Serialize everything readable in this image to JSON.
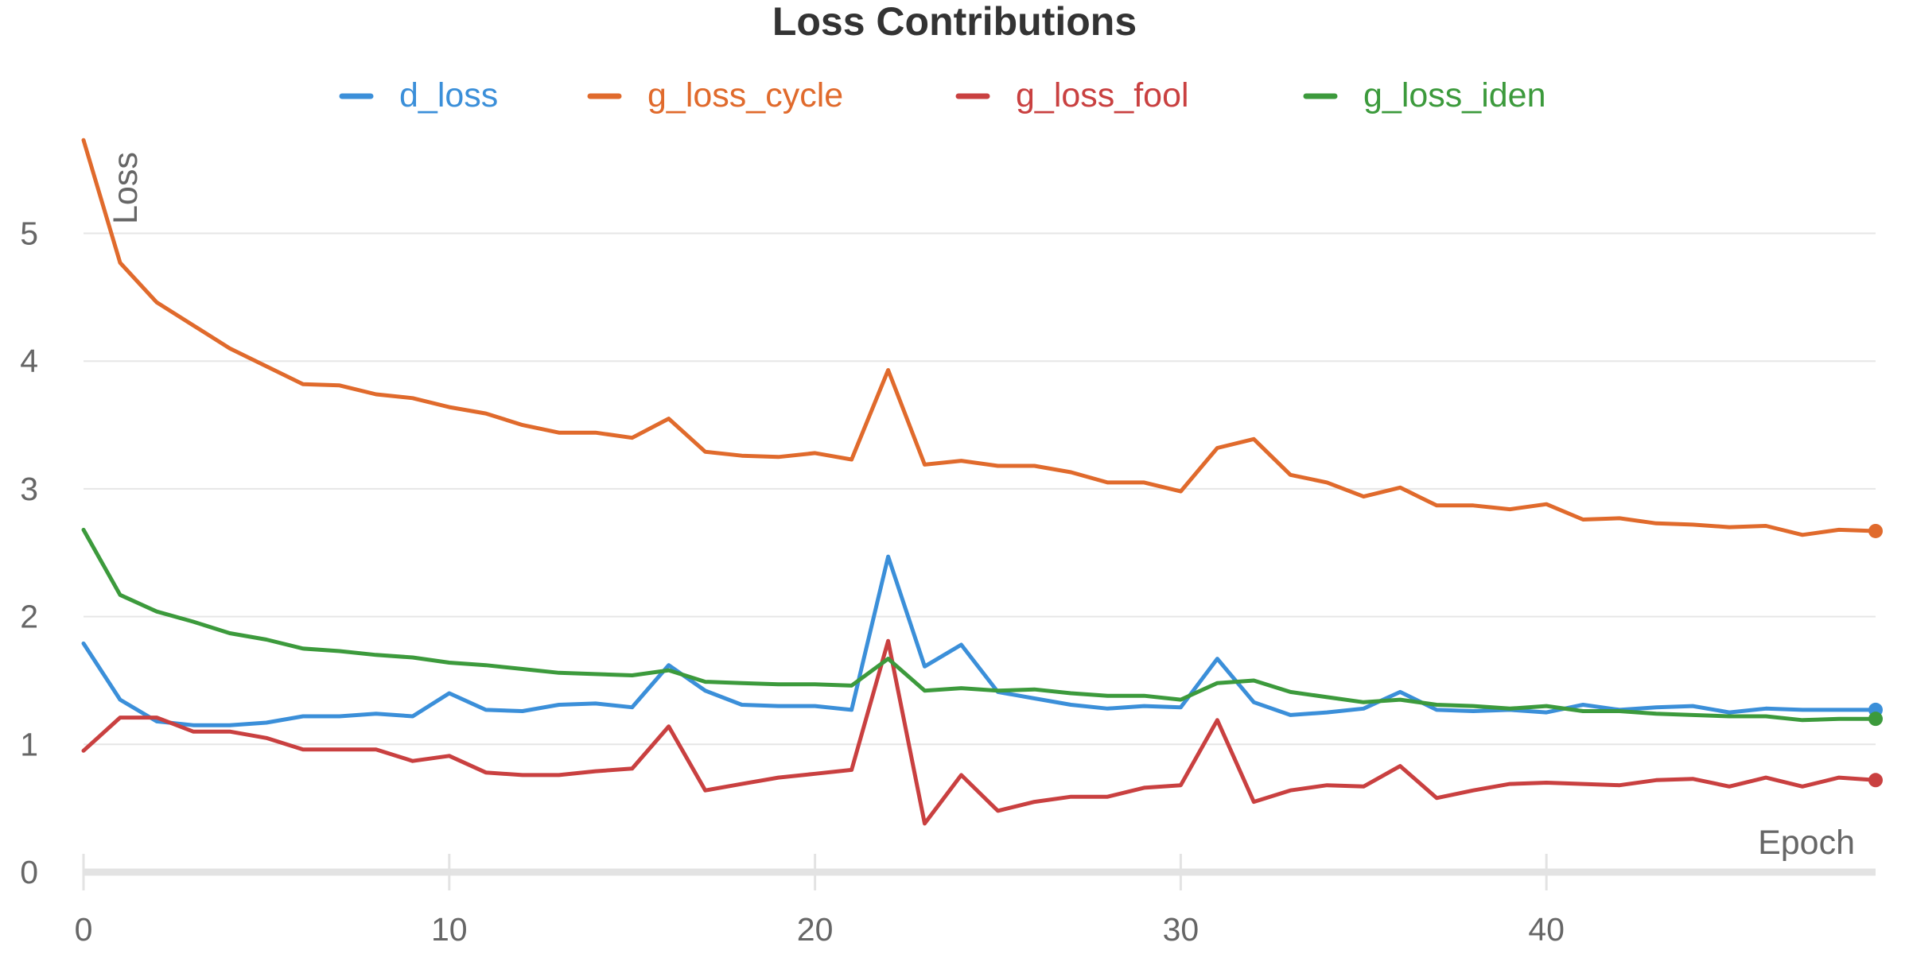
{
  "chart_data": {
    "type": "line",
    "title": "Loss Contributions",
    "xlabel": "Epoch",
    "ylabel": "Loss",
    "xlim": [
      0,
      49
    ],
    "ylim": [
      0,
      5.8
    ],
    "x_ticks": [
      0,
      10,
      20,
      30,
      40
    ],
    "y_ticks": [
      0,
      1,
      2,
      3,
      4,
      5
    ],
    "grid": "horizontal",
    "legend_position": "top",
    "x": [
      0,
      1,
      2,
      3,
      4,
      5,
      6,
      7,
      8,
      9,
      10,
      11,
      12,
      13,
      14,
      15,
      16,
      17,
      18,
      19,
      20,
      21,
      22,
      23,
      24,
      25,
      26,
      27,
      28,
      29,
      30,
      31,
      32,
      33,
      34,
      35,
      36,
      37,
      38,
      39,
      40,
      41,
      42,
      43,
      44,
      45,
      46,
      47,
      48,
      49
    ],
    "series": [
      {
        "name": "d_loss",
        "color": "#3b8fd9",
        "values": [
          1.79,
          1.35,
          1.18,
          1.15,
          1.15,
          1.17,
          1.22,
          1.22,
          1.24,
          1.22,
          1.4,
          1.27,
          1.26,
          1.31,
          1.32,
          1.29,
          1.62,
          1.42,
          1.31,
          1.3,
          1.3,
          1.27,
          2.47,
          1.61,
          1.78,
          1.41,
          1.36,
          1.31,
          1.28,
          1.3,
          1.29,
          1.67,
          1.33,
          1.23,
          1.25,
          1.28,
          1.41,
          1.27,
          1.26,
          1.27,
          1.25,
          1.31,
          1.27,
          1.29,
          1.3,
          1.25,
          1.28,
          1.27,
          1.27,
          1.27
        ]
      },
      {
        "name": "g_loss_cycle",
        "color": "#e06a2c",
        "values": [
          5.73,
          4.77,
          4.46,
          4.28,
          4.1,
          3.96,
          3.82,
          3.81,
          3.74,
          3.71,
          3.64,
          3.59,
          3.5,
          3.44,
          3.44,
          3.4,
          3.55,
          3.29,
          3.26,
          3.25,
          3.28,
          3.23,
          3.93,
          3.19,
          3.22,
          3.18,
          3.18,
          3.13,
          3.05,
          3.05,
          2.98,
          3.32,
          3.39,
          3.11,
          3.05,
          2.94,
          3.01,
          2.87,
          2.87,
          2.84,
          2.88,
          2.76,
          2.77,
          2.73,
          2.72,
          2.7,
          2.71,
          2.64,
          2.68,
          2.67
        ]
      },
      {
        "name": "g_loss_fool",
        "color": "#c94040",
        "values": [
          0.95,
          1.21,
          1.21,
          1.1,
          1.1,
          1.05,
          0.96,
          0.96,
          0.96,
          0.87,
          0.91,
          0.78,
          0.76,
          0.76,
          0.79,
          0.81,
          1.14,
          0.64,
          0.69,
          0.74,
          0.77,
          0.8,
          1.81,
          0.38,
          0.76,
          0.48,
          0.55,
          0.59,
          0.59,
          0.66,
          0.68,
          1.19,
          0.55,
          0.64,
          0.68,
          0.67,
          0.83,
          0.58,
          0.64,
          0.69,
          0.7,
          0.69,
          0.68,
          0.72,
          0.73,
          0.67,
          0.74,
          0.67,
          0.74,
          0.72
        ]
      },
      {
        "name": "g_loss_iden",
        "color": "#3c9a3c",
        "values": [
          2.68,
          2.17,
          2.04,
          1.96,
          1.87,
          1.82,
          1.75,
          1.73,
          1.7,
          1.68,
          1.64,
          1.62,
          1.59,
          1.56,
          1.55,
          1.54,
          1.58,
          1.49,
          1.48,
          1.47,
          1.47,
          1.46,
          1.67,
          1.42,
          1.44,
          1.42,
          1.43,
          1.4,
          1.38,
          1.38,
          1.35,
          1.48,
          1.5,
          1.41,
          1.37,
          1.33,
          1.35,
          1.31,
          1.3,
          1.28,
          1.3,
          1.26,
          1.26,
          1.24,
          1.23,
          1.22,
          1.22,
          1.19,
          1.2,
          1.2
        ]
      }
    ]
  }
}
